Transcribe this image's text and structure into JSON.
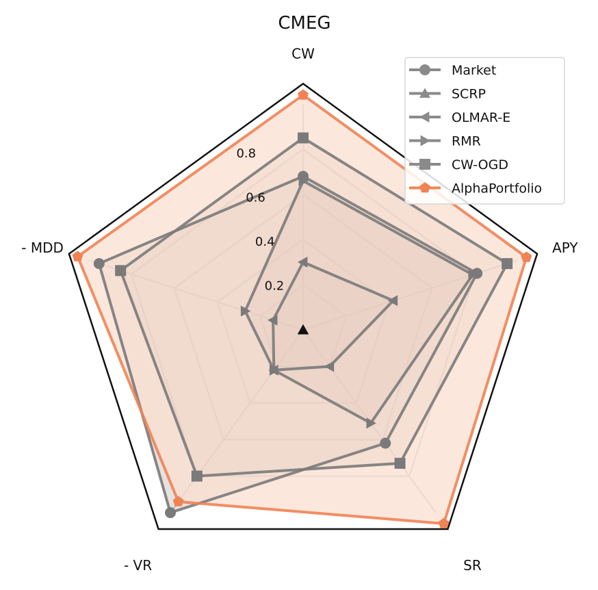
{
  "chart_data": {
    "type": "radar",
    "title": "CMEG",
    "axes": [
      "CW",
      "APY",
      "SR",
      "- VR",
      "- MDD"
    ],
    "rlim": [
      0,
      1
    ],
    "rticks": [
      0.2,
      0.4,
      0.6,
      0.8
    ],
    "rtick_labels": [
      "0.2",
      "0.4",
      "0.6",
      "0.8"
    ],
    "grid": true,
    "legend_position": "top-right",
    "series": [
      {
        "name": "Market",
        "values": [
          0.68,
          0.81,
          0.62,
          1.0,
          0.95
        ],
        "color": "#7a7a7a",
        "marker": "circle"
      },
      {
        "name": "SCRP",
        "values": [
          0.0,
          0.0,
          0.0,
          0.0,
          0.0
        ],
        "color": "#7a7a7a",
        "marker": "triangle-up"
      },
      {
        "name": "OLMAR-E",
        "values": [
          0.3,
          0.42,
          0.2,
          0.22,
          0.14
        ],
        "color": "#7a7a7a",
        "marker": "triangle-left"
      },
      {
        "name": "RMR",
        "values": [
          0.66,
          0.79,
          0.51,
          0.22,
          0.27
        ],
        "color": "#7a7a7a",
        "marker": "triangle-right"
      },
      {
        "name": "CW-OGD",
        "values": [
          0.85,
          0.95,
          0.73,
          0.8,
          0.85
        ],
        "color": "#7a7a7a",
        "marker": "square"
      },
      {
        "name": "AlphaPortfolio",
        "values": [
          1.04,
          1.04,
          1.06,
          0.94,
          1.05
        ],
        "color": "#ef8354",
        "marker": "pentagon"
      }
    ],
    "fill_colors": {
      "gray": "#8b7b73",
      "orange": "#fbdfd0"
    }
  }
}
